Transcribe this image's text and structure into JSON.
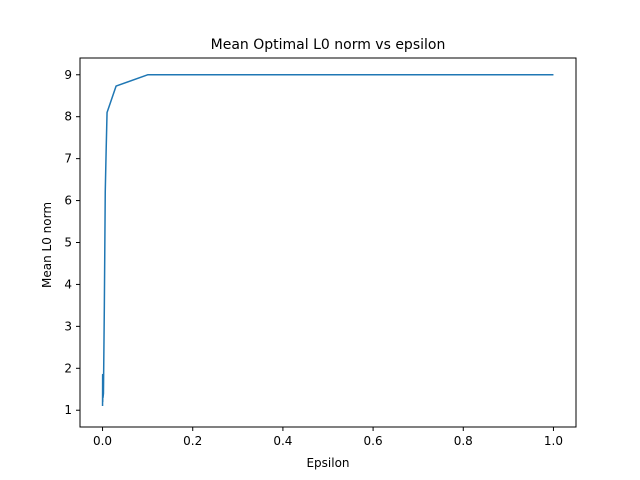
{
  "chart_data": {
    "type": "line",
    "title": "Mean Optimal L0 norm vs epsilon",
    "xlabel": "Epsilon",
    "ylabel": "Mean L0 norm",
    "xlim": [
      -0.05,
      1.05
    ],
    "ylim": [
      0.6,
      9.4
    ],
    "xticks": [
      0.0,
      0.2,
      0.4,
      0.6,
      0.8,
      1.0
    ],
    "xtick_labels": [
      "0.0",
      "0.2",
      "0.4",
      "0.6",
      "0.8",
      "1.0"
    ],
    "yticks": [
      1,
      2,
      3,
      4,
      5,
      6,
      7,
      8,
      9
    ],
    "ytick_labels": [
      "1",
      "2",
      "3",
      "4",
      "5",
      "6",
      "7",
      "8",
      "9"
    ],
    "grid": false,
    "colors": {
      "line": "#1f77b4"
    },
    "series": [
      {
        "x": [
          0.0,
          0.0002,
          0.0004,
          0.0006,
          0.0008,
          0.001,
          0.002,
          0.004,
          0.006,
          0.008,
          0.01,
          0.03,
          0.1,
          0.2,
          0.4,
          0.6,
          0.8,
          1.0
        ],
        "y": [
          1.1,
          1.85,
          1.2,
          1.6,
          1.3,
          1.3,
          1.4,
          3.5,
          6.2,
          7.2,
          8.1,
          8.73,
          9.0,
          9.0,
          9.0,
          9.0,
          9.0,
          9.0
        ]
      }
    ]
  }
}
